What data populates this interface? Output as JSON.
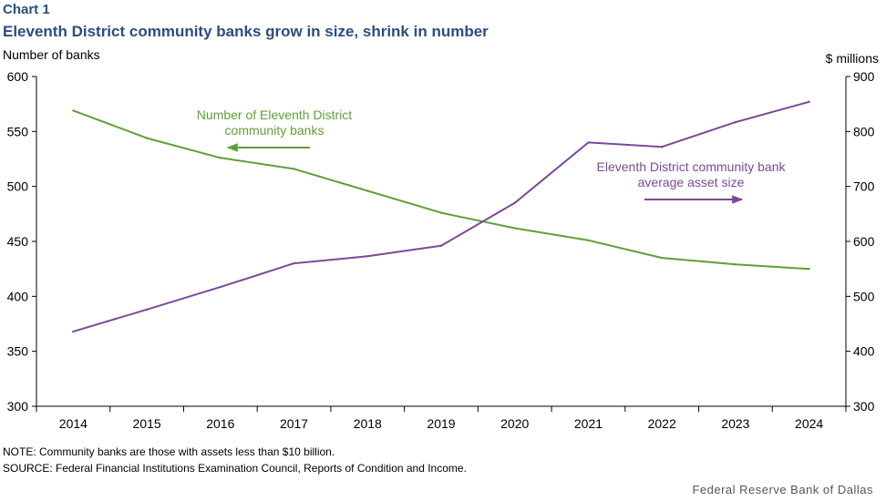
{
  "header": {
    "chart_number": "Chart 1",
    "title": "Eleventh District community banks grow in size, shrink in number"
  },
  "footer": {
    "note": "NOTE:  Community  banks are those with assets less than $10 billion.",
    "source": "SOURCE:  Federal Financial Institutions Examination  Council, Reports of Condition and Income.",
    "credit": "Federal  Reserve  Bank of Dallas"
  },
  "colors": {
    "banks": "#5fa036",
    "assets": "#7a4a9a",
    "title": "#2b4d82"
  },
  "chart_data": {
    "type": "line",
    "title": "Eleventh District community banks grow in size, shrink in number",
    "categories": [
      "2014",
      "2015",
      "2016",
      "2017",
      "2018",
      "2019",
      "2020",
      "2021",
      "2022",
      "2023",
      "2024"
    ],
    "left_axis": {
      "label": "Number of banks",
      "min": 300,
      "max": 600,
      "step": 50,
      "ticks": [
        "300",
        "350",
        "400",
        "450",
        "500",
        "550",
        "600"
      ]
    },
    "right_axis": {
      "label": "$ millions",
      "min": 300,
      "max": 900,
      "step": 100,
      "ticks": [
        "300",
        "400",
        "500",
        "600",
        "700",
        "800",
        "900"
      ]
    },
    "series": [
      {
        "name": "Number of Eleventh District community banks",
        "axis": "left",
        "color": "#5fa036",
        "values": [
          569,
          544,
          526,
          516,
          496,
          476,
          462,
          451,
          435,
          429,
          425
        ],
        "annotation": [
          "Number of Eleventh District",
          "community banks"
        ],
        "arrow": "left"
      },
      {
        "name": "Eleventh District community bank average asset size",
        "axis": "right",
        "color": "#7a4a9a",
        "values": [
          436,
          476,
          517,
          560,
          573,
          592,
          670,
          780,
          772,
          817,
          854
        ],
        "annotation": [
          "Eleventh District community bank",
          "average asset size"
        ],
        "arrow": "right"
      }
    ]
  }
}
